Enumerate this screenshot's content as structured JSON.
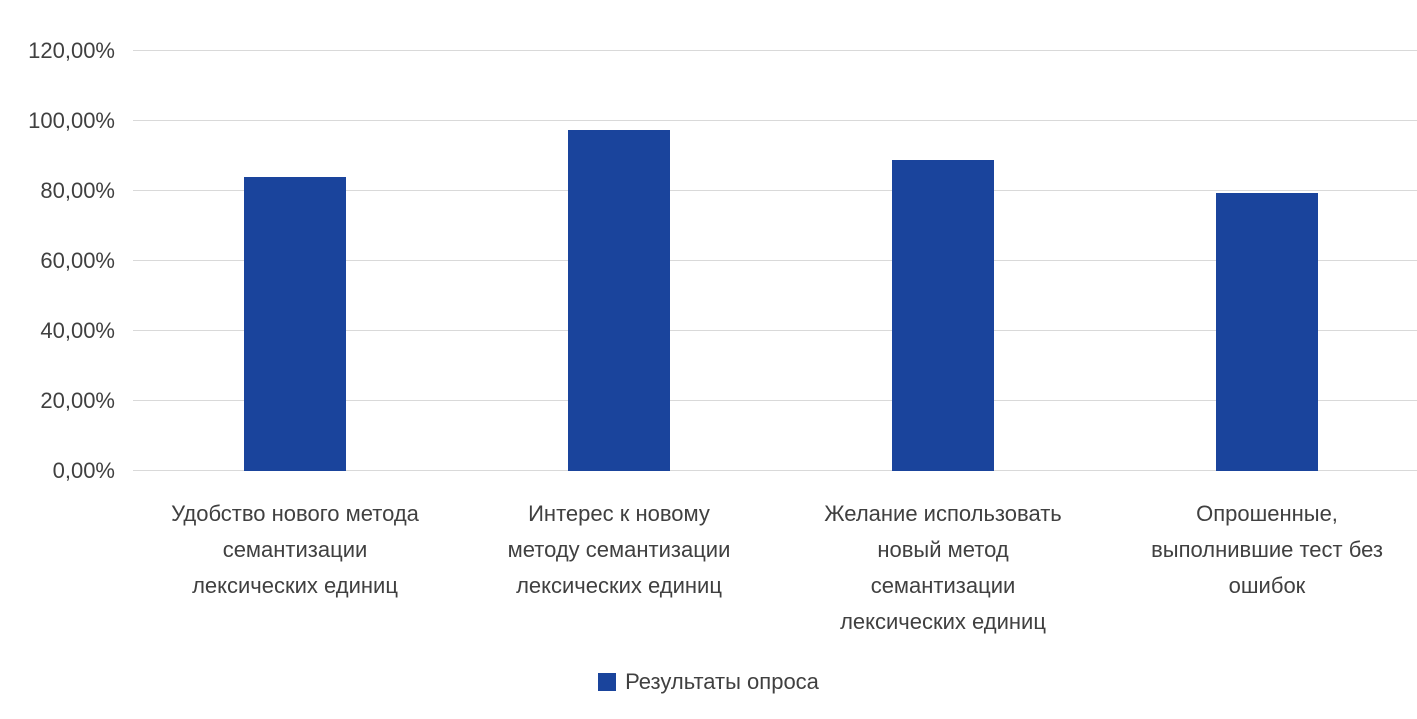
{
  "chart_data": {
    "type": "bar",
    "title": "",
    "xlabel": "",
    "ylabel": "",
    "categories": [
      "Удобство нового метода семантизации лексических единиц",
      "Интерес к новому методу семантизации лексических единиц",
      "Желание использовать новый метод семантизации лексических единиц",
      "Опрошенные, выполнившие тест без ошибок"
    ],
    "category_lines": [
      [
        "Удобство нового метода",
        "семантизации",
        "лексических единиц"
      ],
      [
        "Интерес к новому",
        "методу семантизации",
        "лексических единиц"
      ],
      [
        "Желание использовать",
        "новый метод",
        "семантизации",
        "лексических единиц"
      ],
      [
        "Опрошенные,",
        "выполнившие тест без",
        "ошибок"
      ]
    ],
    "series": [
      {
        "name": "Результаты опроса",
        "values": [
          84.0,
          97.5,
          89.0,
          79.4
        ]
      }
    ],
    "ylim": [
      0,
      120
    ],
    "ytick_step": 20,
    "ytick_labels": [
      "0,00%",
      "20,00%",
      "40,00%",
      "60,00%",
      "80,00%",
      "100,00%",
      "120,00%"
    ],
    "grid": true,
    "legend_position": "bottom",
    "legend_label": "Результаты опроса",
    "colors": {
      "bar": "#1a449c",
      "gridline": "#d9d9d9",
      "axis_line": "#d9d9d9",
      "text": "#404040"
    }
  }
}
